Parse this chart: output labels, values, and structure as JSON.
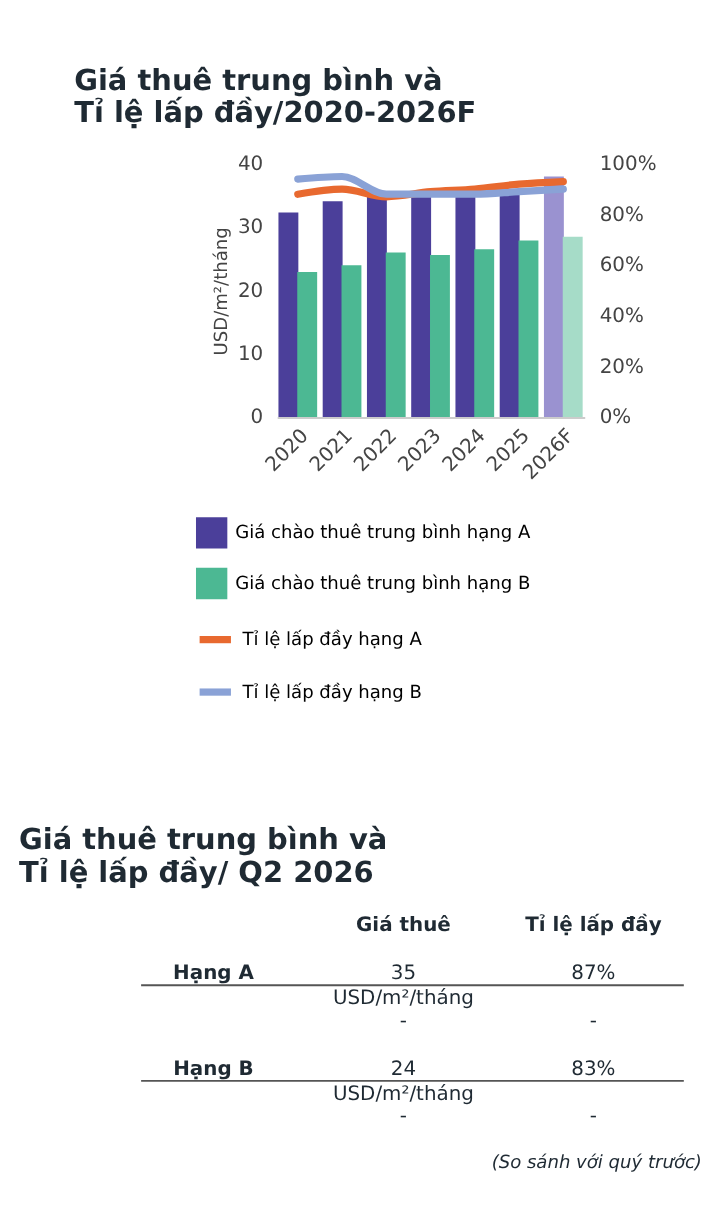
{
  "chart_data": [
    {
      "type": "bar",
      "title": "Giá thuê trung bình và Tỉ lệ lấp đầy/2020-2026F",
      "ylabel": "USD/m²/tháng",
      "categories": [
        "2020",
        "2021",
        "2022",
        "2023",
        "2024",
        "2025",
        "2026F"
      ],
      "series": [
        {
          "name": "Giá chào thuê trung bình hạng A",
          "color": "#4b3f9a",
          "colors": [
            "#4b3f9a",
            "#4b3f9a",
            "#4b3f9a",
            "#4b3f9a",
            "#4b3f9a",
            "#4b3f9a",
            "#9a92d0"
          ],
          "values": [
            32.3,
            34.1,
            35,
            35,
            35,
            36,
            38
          ]
        },
        {
          "name": "Giá chào thuê trung bình hạng B",
          "color": "#4cb893",
          "colors": [
            "#4cb893",
            "#4cb893",
            "#4cb893",
            "#4cb893",
            "#4cb893",
            "#4cb893",
            "#a6dcc8"
          ],
          "values": [
            22.9,
            24,
            26,
            25.6,
            26.5,
            27.9,
            28.5
          ]
        },
        {
          "name": "Tỉ lệ lấp đầy hạng A",
          "type": "line",
          "axis": "y2",
          "color": "#e8692f",
          "values": [
            88,
            90,
            87,
            89,
            90,
            92,
            93
          ]
        },
        {
          "name": "Tỉ lệ lấp đầy hạng B",
          "type": "line",
          "axis": "y2",
          "color": "#8aa2d6",
          "values": [
            94,
            95,
            88,
            88,
            88,
            89,
            90
          ]
        }
      ],
      "ylim": [
        0,
        40
      ],
      "yticks": [
        0,
        10,
        20,
        30,
        40
      ],
      "y2lim": [
        0,
        100
      ],
      "y2ticks": [
        {
          "value": 0,
          "label": "0%"
        },
        {
          "value": 20,
          "label": "20%"
        },
        {
          "value": 40,
          "label": "40%"
        },
        {
          "value": 60,
          "label": "60%"
        },
        {
          "value": 80,
          "label": "80%"
        },
        {
          "value": 100,
          "label": "100%"
        }
      ],
      "grid": false,
      "legend": "bottom"
    },
    {
      "type": "other",
      "title": "Giá thuê trung bình và Tỉ lệ lấp đầy/ Q2 2026",
      "categories": [
        "Giá thuê",
        "Tỉ lệ lấp đầy"
      ],
      "y_categories": [
        "Hạng A",
        null,
        "Hạng B",
        null
      ],
      "cell_labels": [
        [
          "35 USD/m²/tháng",
          "87%"
        ],
        [
          "-",
          "-"
        ],
        [
          "24 USD/m²/tháng",
          "83%"
        ],
        [
          "-",
          "-"
        ]
      ],
      "annotations": [
        "(So sánh với quý trước)"
      ]
    }
  ]
}
